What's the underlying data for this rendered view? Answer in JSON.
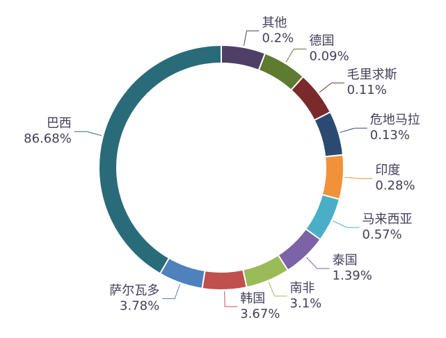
{
  "chart_data": {
    "type": "pie",
    "donut": true,
    "categories": [
      "其他",
      "德国",
      "毛里求斯",
      "危地马拉",
      "印度",
      "马来西亚",
      "泰国",
      "南非",
      "韩国",
      "萨尔瓦多",
      "巴西"
    ],
    "values": [
      0.2,
      0.09,
      0.11,
      0.13,
      0.28,
      0.57,
      1.39,
      3.1,
      3.67,
      3.78,
      86.68
    ],
    "value_labels": [
      "0.2%",
      "0.09%",
      "0.11%",
      "0.13%",
      "0.28%",
      "0.57%",
      "1.39%",
      "3.1%",
      "3.67%",
      "3.78%",
      "86.68%"
    ],
    "colors": [
      "#4e3f66",
      "#5e7b2f",
      "#7a2a2a",
      "#2b4a72",
      "#f0923a",
      "#4aafc6",
      "#7c62a6",
      "#9bbb59",
      "#c0504d",
      "#4f81bd",
      "#2a6b79"
    ]
  }
}
